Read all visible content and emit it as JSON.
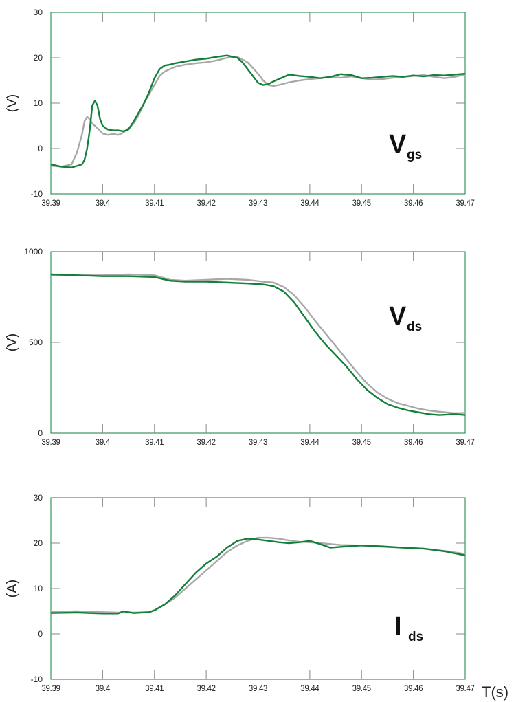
{
  "colors": {
    "series_a": "#12803b",
    "series_b": "#a8a8a8",
    "frame": "#12803b"
  },
  "chart_data": [
    {
      "type": "line",
      "id": "vgs",
      "ylabel": "(V)",
      "label_main": "V",
      "label_sub": "gs",
      "xlim": [
        39.39,
        39.47
      ],
      "ylim": [
        -10,
        30
      ],
      "xticks": [
        "39.39",
        "39.4",
        "39.41",
        "39.42",
        "39.43",
        "39.44",
        "39.45",
        "39.46",
        "39.47"
      ],
      "yticks": [
        "30",
        "20",
        "10",
        "0",
        "-10"
      ],
      "series": [
        {
          "x": [
            39.39,
            39.392,
            39.394,
            39.396,
            39.3965,
            39.397,
            39.3975,
            39.398,
            39.3985,
            39.399,
            39.3995,
            39.4,
            39.401,
            39.402,
            39.403,
            39.404,
            39.405,
            39.406,
            39.407,
            39.408,
            39.409,
            39.41,
            39.411,
            39.412,
            39.413,
            39.414,
            39.416,
            39.418,
            39.42,
            39.422,
            39.424,
            39.426,
            39.427,
            39.428,
            39.429,
            39.43,
            39.431,
            39.432,
            39.433,
            39.434,
            39.435,
            39.436,
            39.438,
            39.44,
            39.442,
            39.444,
            39.446,
            39.448,
            39.45,
            39.452,
            39.454,
            39.456,
            39.458,
            39.46,
            39.462,
            39.464,
            39.466,
            39.468,
            39.47
          ],
          "y": [
            -3.5,
            -4,
            -4.2,
            -3.5,
            -2.5,
            0,
            4,
            9.5,
            10.5,
            9.5,
            6.5,
            5,
            4.2,
            4,
            4,
            3.8,
            4.2,
            6,
            8,
            10,
            12.5,
            15.5,
            17.5,
            18.3,
            18.5,
            18.8,
            19.2,
            19.6,
            19.8,
            20.2,
            20.5,
            20,
            19,
            17.5,
            16,
            14.5,
            14,
            14.2,
            14.8,
            15.3,
            15.8,
            16.3,
            16,
            15.8,
            15.5,
            15.8,
            16.4,
            16.2,
            15.5,
            15.6,
            15.8,
            16,
            15.8,
            16.1,
            15.9,
            16.2,
            16.1,
            16.3,
            16.5
          ]
        },
        {
          "x": [
            39.39,
            39.392,
            39.394,
            39.395,
            39.396,
            39.3965,
            39.397,
            39.3975,
            39.398,
            39.399,
            39.4,
            39.401,
            39.402,
            39.403,
            39.404,
            39.405,
            39.406,
            39.407,
            39.408,
            39.409,
            39.41,
            39.411,
            39.412,
            39.413,
            39.414,
            39.416,
            39.418,
            39.42,
            39.422,
            39.424,
            39.426,
            39.428,
            39.43,
            39.431,
            39.432,
            39.433,
            39.434,
            39.435,
            39.436,
            39.438,
            39.44,
            39.442,
            39.444,
            39.446,
            39.448,
            39.45,
            39.452,
            39.454,
            39.456,
            39.458,
            39.46,
            39.462,
            39.464,
            39.466,
            39.468,
            39.47
          ],
          "y": [
            -3.8,
            -4,
            -3.5,
            -1,
            3,
            6,
            7,
            6.5,
            5.5,
            4.5,
            3.3,
            3,
            3.2,
            3,
            3.5,
            4.5,
            5.5,
            7.5,
            10,
            12,
            14,
            16,
            17,
            17.5,
            18,
            18.5,
            18.8,
            19,
            19.4,
            20,
            20.2,
            19,
            16.5,
            15,
            14,
            13.8,
            14,
            14.3,
            14.6,
            15,
            15.3,
            15.5,
            15.8,
            15.6,
            15.9,
            15.5,
            15.2,
            15.3,
            15.6,
            15.8,
            16,
            16.2,
            15.8,
            15.5,
            15.8,
            16.3
          ]
        }
      ]
    },
    {
      "type": "line",
      "id": "vds",
      "ylabel": "(V)",
      "label_main": "V",
      "label_sub": "ds",
      "xlim": [
        39.39,
        39.47
      ],
      "ylim": [
        0,
        1000
      ],
      "xticks": [
        "39.39",
        "39.4",
        "39.41",
        "39.42",
        "39.43",
        "39.44",
        "39.45",
        "39.46",
        "39.47"
      ],
      "yticks": [
        "1000",
        "500",
        "0"
      ],
      "series": [
        {
          "x": [
            39.39,
            39.395,
            39.4,
            39.405,
            39.41,
            39.413,
            39.416,
            39.42,
            39.424,
            39.428,
            39.431,
            39.433,
            39.435,
            39.437,
            39.439,
            39.441,
            39.443,
            39.445,
            39.447,
            39.449,
            39.451,
            39.453,
            39.455,
            39.457,
            39.459,
            39.461,
            39.463,
            39.465,
            39.468,
            39.47
          ],
          "y": [
            875,
            870,
            865,
            865,
            860,
            840,
            835,
            835,
            830,
            825,
            820,
            810,
            780,
            720,
            640,
            560,
            490,
            430,
            370,
            300,
            240,
            195,
            160,
            140,
            125,
            115,
            105,
            100,
            105,
            100
          ]
        },
        {
          "x": [
            39.39,
            39.395,
            39.4,
            39.405,
            39.41,
            39.413,
            39.416,
            39.42,
            39.424,
            39.428,
            39.431,
            39.433,
            39.435,
            39.437,
            39.439,
            39.441,
            39.443,
            39.445,
            39.447,
            39.449,
            39.451,
            39.453,
            39.455,
            39.457,
            39.459,
            39.461,
            39.463,
            39.465,
            39.468,
            39.47
          ],
          "y": [
            870,
            870,
            870,
            875,
            870,
            845,
            840,
            845,
            850,
            845,
            835,
            830,
            805,
            760,
            695,
            620,
            550,
            480,
            410,
            340,
            275,
            225,
            190,
            165,
            150,
            135,
            125,
            118,
            110,
            112
          ]
        }
      ]
    },
    {
      "type": "line",
      "id": "ids",
      "ylabel": "(A)",
      "label_main": "I",
      "label_sub": "ds",
      "xlim": [
        39.39,
        39.47
      ],
      "ylim": [
        -10,
        30
      ],
      "xticks": [
        "39.39",
        "39.4",
        "39.41",
        "39.42",
        "39.43",
        "39.44",
        "39.45",
        "39.46",
        "39.47"
      ],
      "yticks": [
        "30",
        "20",
        "10",
        "0",
        "-10"
      ],
      "series": [
        {
          "x": [
            39.39,
            39.395,
            39.4,
            39.403,
            39.404,
            39.406,
            39.409,
            39.41,
            39.412,
            39.414,
            39.416,
            39.418,
            39.42,
            39.422,
            39.424,
            39.426,
            39.428,
            39.43,
            39.432,
            39.434,
            39.436,
            39.438,
            39.44,
            39.442,
            39.444,
            39.446,
            39.45,
            39.454,
            39.458,
            39.462,
            39.466,
            39.47
          ],
          "y": [
            4.6,
            4.7,
            4.5,
            4.5,
            5,
            4.6,
            4.8,
            5.2,
            6.5,
            8.5,
            11,
            13.5,
            15.5,
            17,
            19,
            20.5,
            21,
            20.8,
            20.5,
            20.2,
            20,
            20.2,
            20.5,
            19.8,
            19,
            19.2,
            19.5,
            19.3,
            19,
            18.8,
            18.2,
            17.3
          ]
        },
        {
          "x": [
            39.39,
            39.395,
            39.4,
            39.403,
            39.406,
            39.409,
            39.41,
            39.412,
            39.414,
            39.416,
            39.418,
            39.42,
            39.422,
            39.424,
            39.426,
            39.428,
            39.43,
            39.432,
            39.434,
            39.436,
            39.438,
            39.44,
            39.442,
            39.444,
            39.446,
            39.45,
            39.454,
            39.458,
            39.462,
            39.466,
            39.47
          ],
          "y": [
            4.9,
            5,
            4.8,
            4.7,
            4.7,
            4.8,
            5.2,
            6.5,
            8,
            10,
            12,
            14,
            16,
            18,
            19.5,
            20.5,
            21.2,
            21.2,
            21,
            20.6,
            20.3,
            20.2,
            20,
            19.8,
            19.6,
            19.5,
            19.2,
            19,
            18.8,
            18.3,
            17.6
          ]
        }
      ]
    }
  ],
  "x_axis_unit": "T(s)"
}
